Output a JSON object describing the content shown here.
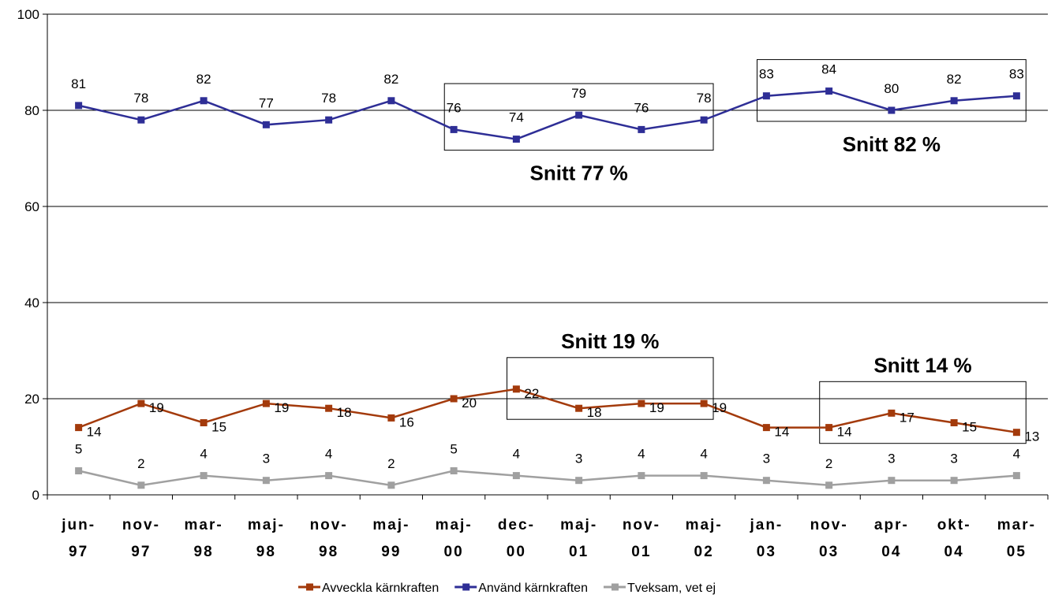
{
  "chart_data": {
    "type": "line",
    "ylim": [
      0,
      100
    ],
    "yticks": [
      0,
      20,
      40,
      60,
      80,
      100
    ],
    "grid": true,
    "legend_position": "bottom",
    "categories": [
      [
        "jun-",
        "97"
      ],
      [
        "nov-",
        "97"
      ],
      [
        "mar-",
        "98"
      ],
      [
        "maj-",
        "98"
      ],
      [
        "nov-",
        "98"
      ],
      [
        "maj-",
        "99"
      ],
      [
        "maj-",
        "00"
      ],
      [
        "dec-",
        "00"
      ],
      [
        "maj-",
        "01"
      ],
      [
        "nov-",
        "01"
      ],
      [
        "maj-",
        "02"
      ],
      [
        "jan-",
        "03"
      ],
      [
        "nov-",
        "03"
      ],
      [
        "apr-",
        "04"
      ],
      [
        "okt-",
        "04"
      ],
      [
        "mar-",
        "05"
      ]
    ],
    "series": [
      {
        "name": "Avveckla kärnkraften",
        "color": "#a33a0b",
        "values": [
          14,
          19,
          15,
          19,
          18,
          16,
          20,
          22,
          18,
          19,
          19,
          14,
          14,
          17,
          15,
          13
        ]
      },
      {
        "name": "Använd kärnkraften",
        "color": "#2e2e96",
        "values": [
          81,
          78,
          82,
          77,
          78,
          82,
          76,
          74,
          79,
          76,
          78,
          83,
          84,
          80,
          82,
          83
        ]
      },
      {
        "name": "Tveksam, vet ej",
        "color": "#a0a0a0",
        "values": [
          5,
          2,
          4,
          3,
          4,
          2,
          5,
          4,
          3,
          4,
          4,
          3,
          2,
          3,
          3,
          4
        ]
      }
    ],
    "annotations": [
      {
        "text": "Snitt 77 %",
        "series": 1,
        "from": 6,
        "to": 10
      },
      {
        "text": "Snitt 82 %",
        "series": 1,
        "from": 11,
        "to": 15
      },
      {
        "text": "Snitt 19 %",
        "series": 0,
        "from": 7,
        "to": 10
      },
      {
        "text": "Snitt 14 %",
        "series": 0,
        "from": 12,
        "to": 15
      }
    ]
  }
}
